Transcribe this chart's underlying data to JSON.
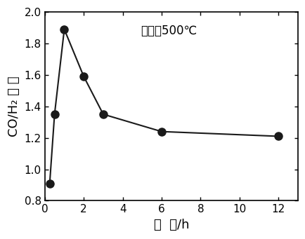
{
  "x": [
    0.25,
    0.5,
    1,
    2,
    3,
    6,
    12
  ],
  "y": [
    0.91,
    1.35,
    1.89,
    1.59,
    1.35,
    1.24,
    1.21
  ],
  "xlabel": "时  间/h",
  "ylabel": "CO/H₂ 比 例",
  "annotation": "温度为500℃",
  "xlim": [
    0,
    13
  ],
  "ylim": [
    0.8,
    2.0
  ],
  "xticks": [
    0,
    2,
    4,
    6,
    8,
    10,
    12
  ],
  "yticks": [
    0.8,
    1.0,
    1.2,
    1.4,
    1.6,
    1.8,
    2.0
  ],
  "line_color": "#1a1a1a",
  "marker_color": "#1a1a1a",
  "marker_size": 8,
  "line_width": 1.5,
  "annotation_fontsize": 12,
  "label_fontsize": 13,
  "tick_fontsize": 11
}
